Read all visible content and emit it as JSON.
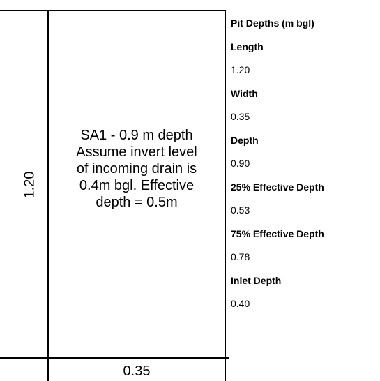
{
  "pit": {
    "length": "1.20",
    "width": "0.35",
    "note_lines": [
      "SA1 - 0.9 m depth",
      "Assume invert level",
      "of incoming drain is",
      "0.4m bgl.  Effective",
      "depth = 0.5m"
    ]
  },
  "panel": {
    "title": "Pit Depths (m bgl)",
    "length_label": "Length",
    "length_value": "1.20",
    "width_label": "Width",
    "width_value": "0.35",
    "depth_label": "Depth",
    "depth_value": "0.90",
    "eff25_label": "25% Effective Depth",
    "eff25_value": "0.53",
    "eff75_label": "75% Effective Depth",
    "eff75_value": "0.78",
    "inlet_label": "Inlet Depth",
    "inlet_value": "0.40"
  }
}
